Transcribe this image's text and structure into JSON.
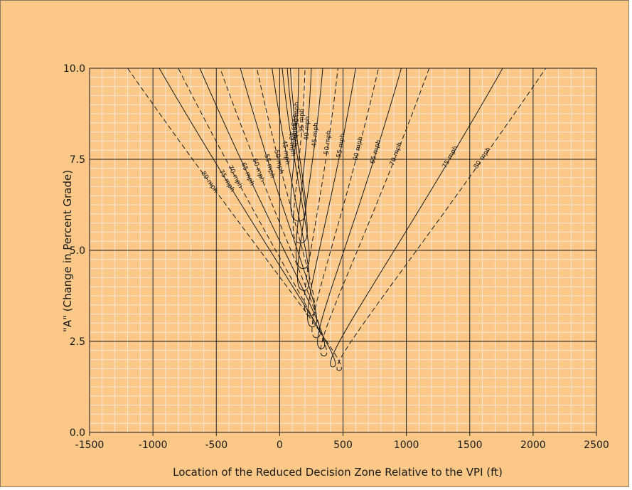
{
  "chart_data": {
    "type": "line",
    "title": "",
    "xlabel": "Location of the Reduced Decision Zone Relative to the VPI (ft)",
    "ylabel": "\"A\" (Change in Percent Grade)",
    "xlim": [
      -1500,
      2500
    ],
    "ylim": [
      0,
      10
    ],
    "x_ticks": [
      "-1500",
      "-1000",
      "-500",
      "0",
      "500",
      "1000",
      "1500",
      "2000",
      "2500"
    ],
    "y_ticks": [
      "0.0",
      "2.5",
      "5.0",
      "7.5",
      "10.0"
    ],
    "grid": "major and minor",
    "legend": "none",
    "colors": {
      "background": "#fcc888",
      "grid_minor": "#f2e6d8",
      "grid_major": "#1a1a1a",
      "curves": "#1a1a1a"
    },
    "series": [
      {
        "name": "30 mph",
        "side": "left",
        "style": "solid",
        "points": [
          [
            150,
            5.8
          ],
          [
            85,
            10
          ]
        ]
      },
      {
        "name": "35 mph",
        "side": "left",
        "style": "solid",
        "points": [
          [
            165,
            5.2
          ],
          [
            60,
            10
          ]
        ]
      },
      {
        "name": "40 mph",
        "side": "left",
        "style": "solid",
        "points": [
          [
            185,
            4.5
          ],
          [
            20,
            10
          ]
        ]
      },
      {
        "name": "45 mph",
        "side": "left",
        "style": "solid",
        "points": [
          [
            190,
            3.9
          ],
          [
            -60,
            10
          ]
        ]
      },
      {
        "name": "50 mph",
        "side": "left",
        "style": "dashed",
        "points": [
          [
            240,
            3.2
          ],
          [
            -180,
            10
          ]
        ]
      },
      {
        "name": "55 mph",
        "side": "left",
        "style": "solid",
        "points": [
          [
            260,
            2.9
          ],
          [
            -310,
            10
          ]
        ]
      },
      {
        "name": "60 mph",
        "side": "left",
        "style": "dashed",
        "points": [
          [
            290,
            2.6
          ],
          [
            -470,
            10
          ]
        ]
      },
      {
        "name": "65 mph",
        "side": "left",
        "style": "solid",
        "points": [
          [
            330,
            2.3
          ],
          [
            -630,
            10
          ]
        ]
      },
      {
        "name": "70 mph",
        "side": "left",
        "style": "dashed",
        "points": [
          [
            350,
            2.1
          ],
          [
            -800,
            10
          ]
        ]
      },
      {
        "name": "75 mph",
        "side": "left",
        "style": "solid",
        "points": [
          [
            420,
            1.8
          ],
          [
            -950,
            10
          ]
        ]
      },
      {
        "name": "80 mph",
        "side": "left",
        "style": "dashed",
        "points": [
          [
            470,
            1.7
          ],
          [
            -1200,
            10
          ]
        ]
      },
      {
        "name": "30 mph",
        "side": "right",
        "style": "solid",
        "points": [
          [
            150,
            5.8
          ],
          [
            150,
            10
          ]
        ]
      },
      {
        "name": "35 mph",
        "side": "right",
        "style": "dashed",
        "points": [
          [
            165,
            5.2
          ],
          [
            200,
            10
          ]
        ]
      },
      {
        "name": "40 mph",
        "side": "right",
        "style": "solid",
        "points": [
          [
            185,
            4.5
          ],
          [
            250,
            10
          ]
        ]
      },
      {
        "name": "45 mph",
        "side": "right",
        "style": "solid",
        "points": [
          [
            190,
            3.9
          ],
          [
            340,
            10
          ]
        ]
      },
      {
        "name": "50 mph",
        "side": "right",
        "style": "dashed",
        "points": [
          [
            240,
            3.2
          ],
          [
            460,
            10
          ]
        ]
      },
      {
        "name": "55 mph",
        "side": "right",
        "style": "solid",
        "points": [
          [
            260,
            2.9
          ],
          [
            600,
            10
          ]
        ]
      },
      {
        "name": "60 mph",
        "side": "right",
        "style": "dashed",
        "points": [
          [
            290,
            2.6
          ],
          [
            780,
            10
          ]
        ]
      },
      {
        "name": "65 mph",
        "side": "right",
        "style": "solid",
        "points": [
          [
            330,
            2.3
          ],
          [
            960,
            10
          ]
        ]
      },
      {
        "name": "70 mph",
        "side": "right",
        "style": "dashed",
        "points": [
          [
            350,
            2.1
          ],
          [
            1180,
            10
          ]
        ]
      },
      {
        "name": "75 mph",
        "side": "right",
        "style": "solid",
        "points": [
          [
            420,
            1.8
          ],
          [
            1760,
            10
          ]
        ]
      },
      {
        "name": "80 mph",
        "side": "right",
        "style": "dashed",
        "points": [
          [
            470,
            1.7
          ],
          [
            2100,
            10
          ]
        ]
      }
    ]
  }
}
